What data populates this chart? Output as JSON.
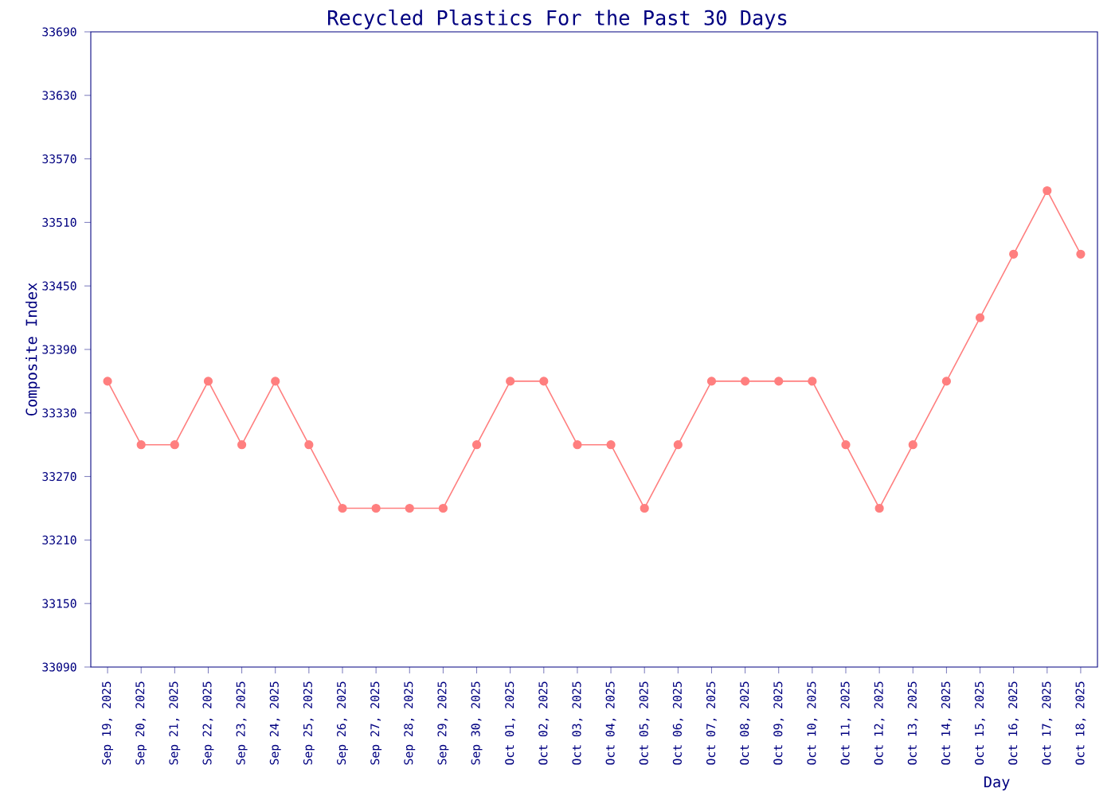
{
  "chart_data": {
    "type": "line",
    "title": "Recycled Plastics For the Past 30 Days",
    "xlabel": "Day",
    "ylabel": "Composite Index",
    "categories": [
      "Sep 19, 2025",
      "Sep 20, 2025",
      "Sep 21, 2025",
      "Sep 22, 2025",
      "Sep 23, 2025",
      "Sep 24, 2025",
      "Sep 25, 2025",
      "Sep 26, 2025",
      "Sep 27, 2025",
      "Sep 28, 2025",
      "Sep 29, 2025",
      "Sep 30, 2025",
      "Oct 01, 2025",
      "Oct 02, 2025",
      "Oct 03, 2025",
      "Oct 04, 2025",
      "Oct 05, 2025",
      "Oct 06, 2025",
      "Oct 07, 2025",
      "Oct 08, 2025",
      "Oct 09, 2025",
      "Oct 10, 2025",
      "Oct 11, 2025",
      "Oct 12, 2025",
      "Oct 13, 2025",
      "Oct 14, 2025",
      "Oct 15, 2025",
      "Oct 16, 2025",
      "Oct 17, 2025",
      "Oct 18, 2025"
    ],
    "series": [
      {
        "color": "#ff7f7f",
        "values": [
          33360,
          33300,
          33300,
          33360,
          33300,
          33360,
          33300,
          33240,
          33240,
          33240,
          33240,
          33300,
          33360,
          33360,
          33300,
          33300,
          33240,
          33300,
          33360,
          33360,
          33360,
          33360,
          33300,
          33240,
          33300,
          33360,
          33420,
          33480,
          33540,
          33480
        ]
      }
    ],
    "ylim": [
      33090,
      33690
    ],
    "yticks": [
      33090,
      33150,
      33210,
      33270,
      33330,
      33390,
      33450,
      33510,
      33570,
      33630,
      33690
    ],
    "marker": "circle",
    "line_style": "solid"
  }
}
